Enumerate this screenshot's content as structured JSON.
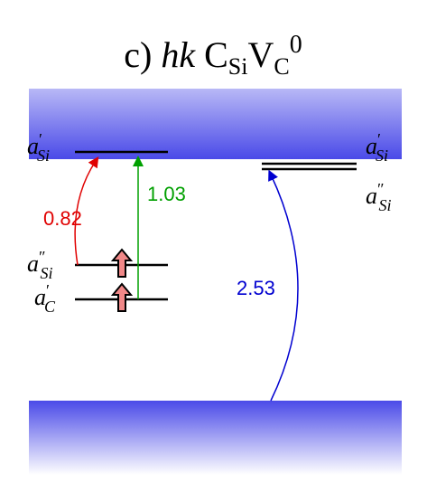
{
  "title": {
    "label": "c)",
    "italic": "hk",
    "c_base": "C",
    "c_sub": "Si",
    "v_base": "V",
    "v_sub": "C",
    "sup": "0"
  },
  "levels": [
    {
      "symbol": "a",
      "prime": "′",
      "sub": "Si"
    },
    {
      "symbol": "a",
      "prime": "″",
      "sub": "Si"
    },
    {
      "symbol": "a",
      "prime": "′",
      "sub": "C"
    },
    {
      "symbol": "a",
      "prime": "′",
      "sub": "Si"
    },
    {
      "symbol": "a",
      "prime": "″",
      "sub": "Si"
    }
  ],
  "transitions": [
    "0.82",
    "1.03",
    "2.53"
  ]
}
